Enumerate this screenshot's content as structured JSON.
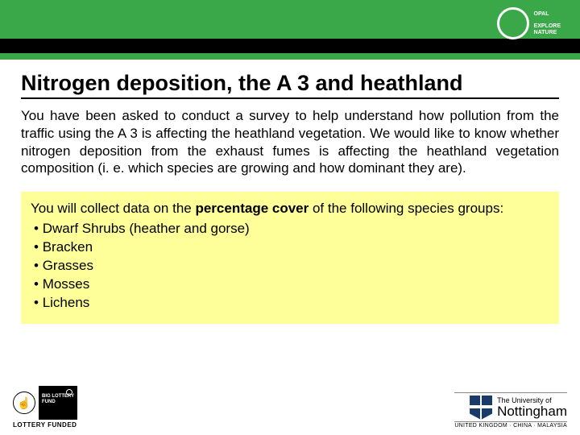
{
  "colors": {
    "header_green": "#3aa748",
    "black_strip": "#000000",
    "highlight_yellow": "#ffff99",
    "text": "#000000",
    "white": "#ffffff"
  },
  "logo": {
    "brand": "OPAL",
    "tagline": "EXPLORE\nNATURE"
  },
  "title": "Nitrogen deposition, the A 3 and heathland",
  "intro": "You have been asked to conduct a survey to help understand how pollution from the traffic using the A 3 is affecting the heathland vegetation. We would like to know whether nitrogen deposition from the exhaust fumes is affecting the heathland vegetation composition (i. e. which species are growing and how dominant they are).",
  "yellow_box": {
    "lead_pre": "You will collect data on the ",
    "lead_bold": "percentage cover",
    "lead_post": " of the following species groups:",
    "items": [
      "Dwarf Shrubs (heather and gorse)",
      "Bracken",
      "Grasses",
      "Mosses",
      "Lichens"
    ]
  },
  "footer": {
    "lottery_label": "LOTTERY FUNDED",
    "big_lottery": "BIG\nLOTTERY\nFUND",
    "uni_top": "",
    "uni_small": "The University of",
    "uni_name": "Nottingham",
    "uni_bottom": "UNITED KINGDOM · CHINA · MALAYSIA"
  }
}
